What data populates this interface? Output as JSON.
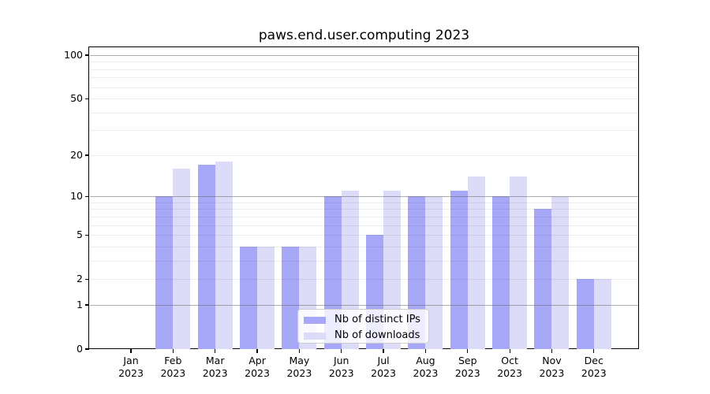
{
  "chart_data": {
    "type": "bar",
    "title": "paws.end.user.computing 2023",
    "categories": [
      "Jan",
      "Feb",
      "Mar",
      "Apr",
      "May",
      "Jun",
      "Jul",
      "Aug",
      "Sep",
      "Oct",
      "Nov",
      "Dec"
    ],
    "x_sublabel": "2023",
    "series": [
      {
        "name": "Nb of distinct IPs",
        "color": "#a7a7f8",
        "values": [
          0,
          10,
          17,
          4,
          4,
          10,
          5,
          10,
          11,
          10,
          8,
          2
        ]
      },
      {
        "name": "Nb of downloads",
        "color": "#dcdcf9",
        "values": [
          0,
          16,
          18,
          4,
          4,
          11,
          11,
          10,
          14,
          14,
          10,
          2
        ]
      }
    ],
    "yscale": "log1p",
    "ylim": [
      0,
      115
    ],
    "yticks": [
      0,
      1,
      2,
      5,
      10,
      20,
      50,
      100
    ],
    "ytick_labels": [
      "0",
      "1",
      "2",
      "5",
      "10",
      "20",
      "50",
      "100"
    ],
    "yminor_gridlines": [
      2,
      3,
      4,
      5,
      6,
      7,
      8,
      9,
      20,
      30,
      40,
      50,
      60,
      70,
      80,
      90
    ],
    "ymajor_gridlines": [
      1,
      10,
      100
    ],
    "grid": true,
    "legend_position": "lower center",
    "axis_color": "#000000",
    "background_color": "#ffffff"
  }
}
